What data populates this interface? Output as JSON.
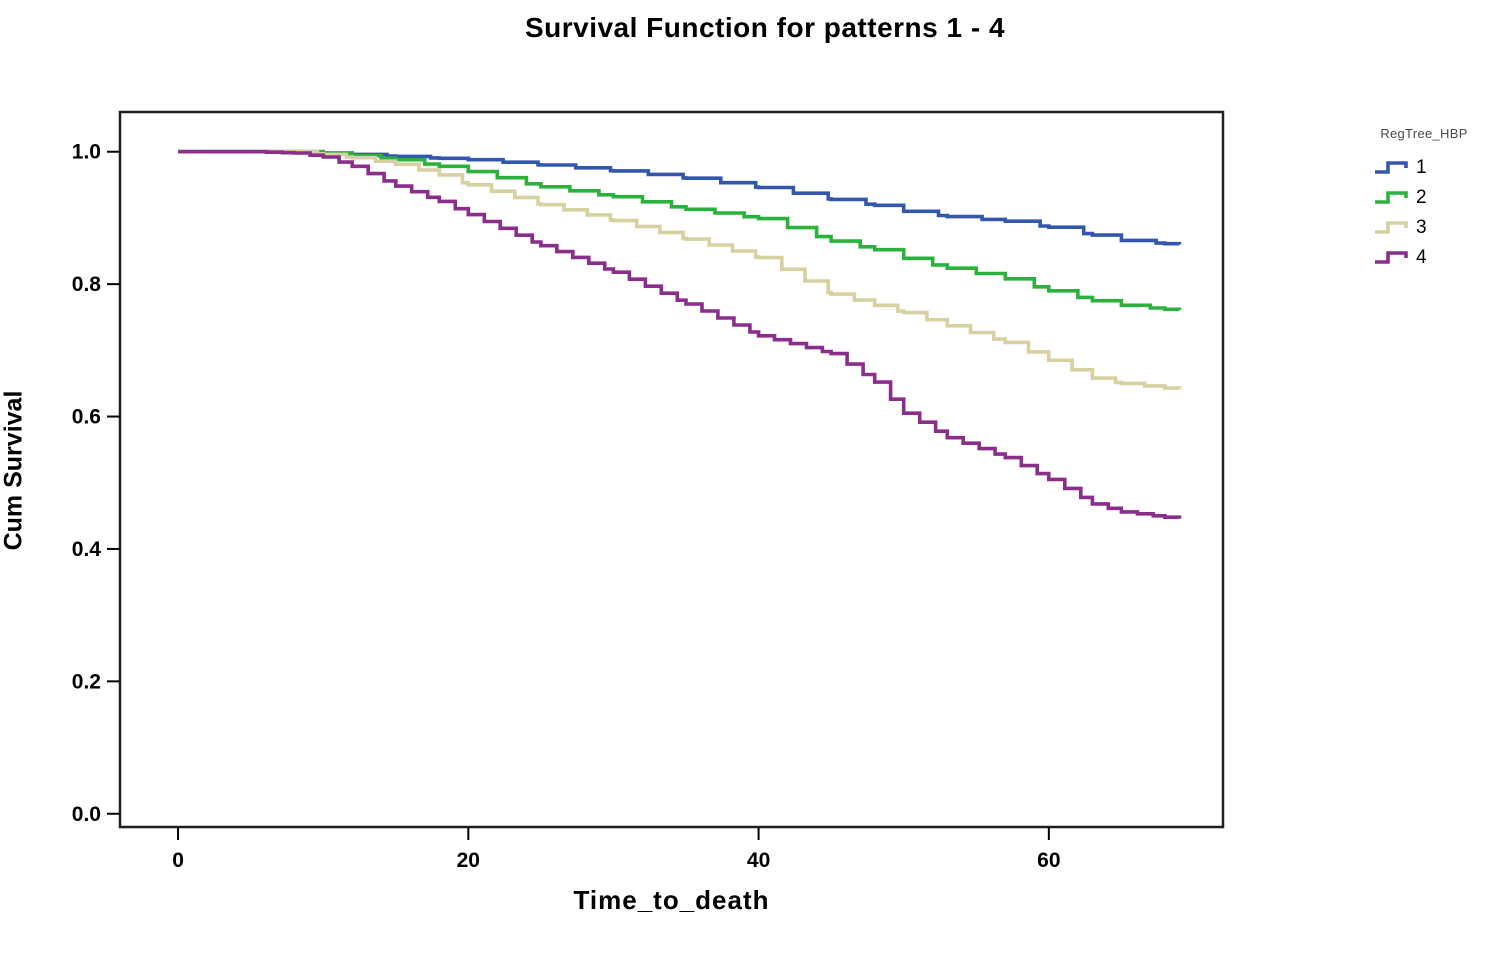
{
  "title": "Survival Function for patterns 1 - 4",
  "axes": {
    "x_title": "Time_to_death",
    "y_title": "Cum Survival"
  },
  "legend": {
    "title": "RegTree_HBP"
  },
  "colors": {
    "frame": "#1f1f1f",
    "tick": "#000000",
    "tick_label": "#000000",
    "background": "#ffffff"
  },
  "chart_data": {
    "type": "line",
    "subtype": "kaplan-meier-step",
    "title": "Survival Function for patterns 1 - 4",
    "xlabel": "Time_to_death",
    "ylabel": "Cum Survival",
    "xlim": [
      -4,
      72
    ],
    "ylim": [
      -0.02,
      1.06
    ],
    "grid": false,
    "legend_title": "RegTree_HBP",
    "legend_position": "right",
    "xticks": [
      0,
      20,
      40,
      60
    ],
    "xtick_labels": [
      "0",
      "20",
      "40",
      "60"
    ],
    "yticks": [
      0.0,
      0.2,
      0.4,
      0.6,
      0.8,
      1.0
    ],
    "ytick_labels": [
      "0.0",
      "0.2",
      "0.4",
      "0.6",
      "0.8",
      "1.0"
    ],
    "x": [
      0,
      5,
      8,
      10,
      12,
      15,
      18,
      20,
      25,
      30,
      35,
      40,
      45,
      48,
      50,
      53,
      57,
      60,
      63,
      65,
      68,
      69
    ],
    "series": [
      {
        "name": "1",
        "color": "#3457ae",
        "step_dt": 2.4,
        "values": [
          1.0,
          1.0,
          1.0,
          0.998,
          0.996,
          0.993,
          0.99,
          0.988,
          0.98,
          0.971,
          0.96,
          0.946,
          0.928,
          0.919,
          0.91,
          0.902,
          0.895,
          0.886,
          0.874,
          0.866,
          0.861,
          0.86
        ]
      },
      {
        "name": "2",
        "color": "#2bb23c",
        "step_dt": 2.0,
        "values": [
          1.0,
          1.0,
          1.0,
          0.997,
          0.994,
          0.988,
          0.978,
          0.97,
          0.947,
          0.932,
          0.913,
          0.899,
          0.865,
          0.852,
          0.839,
          0.824,
          0.808,
          0.79,
          0.775,
          0.768,
          0.762,
          0.761
        ]
      },
      {
        "name": "3",
        "color": "#d7d0a0",
        "step_dt": 1.6,
        "values": [
          1.0,
          1.0,
          1.0,
          0.996,
          0.991,
          0.981,
          0.965,
          0.95,
          0.92,
          0.896,
          0.868,
          0.84,
          0.785,
          0.768,
          0.757,
          0.737,
          0.712,
          0.685,
          0.658,
          0.65,
          0.643,
          0.642
        ]
      },
      {
        "name": "4",
        "color": "#8a2d8b",
        "step_dt": 1.1,
        "values": [
          1.0,
          1.0,
          0.998,
          0.992,
          0.978,
          0.948,
          0.925,
          0.905,
          0.858,
          0.818,
          0.77,
          0.722,
          0.695,
          0.652,
          0.605,
          0.568,
          0.538,
          0.505,
          0.468,
          0.456,
          0.448,
          0.446
        ]
      }
    ]
  }
}
